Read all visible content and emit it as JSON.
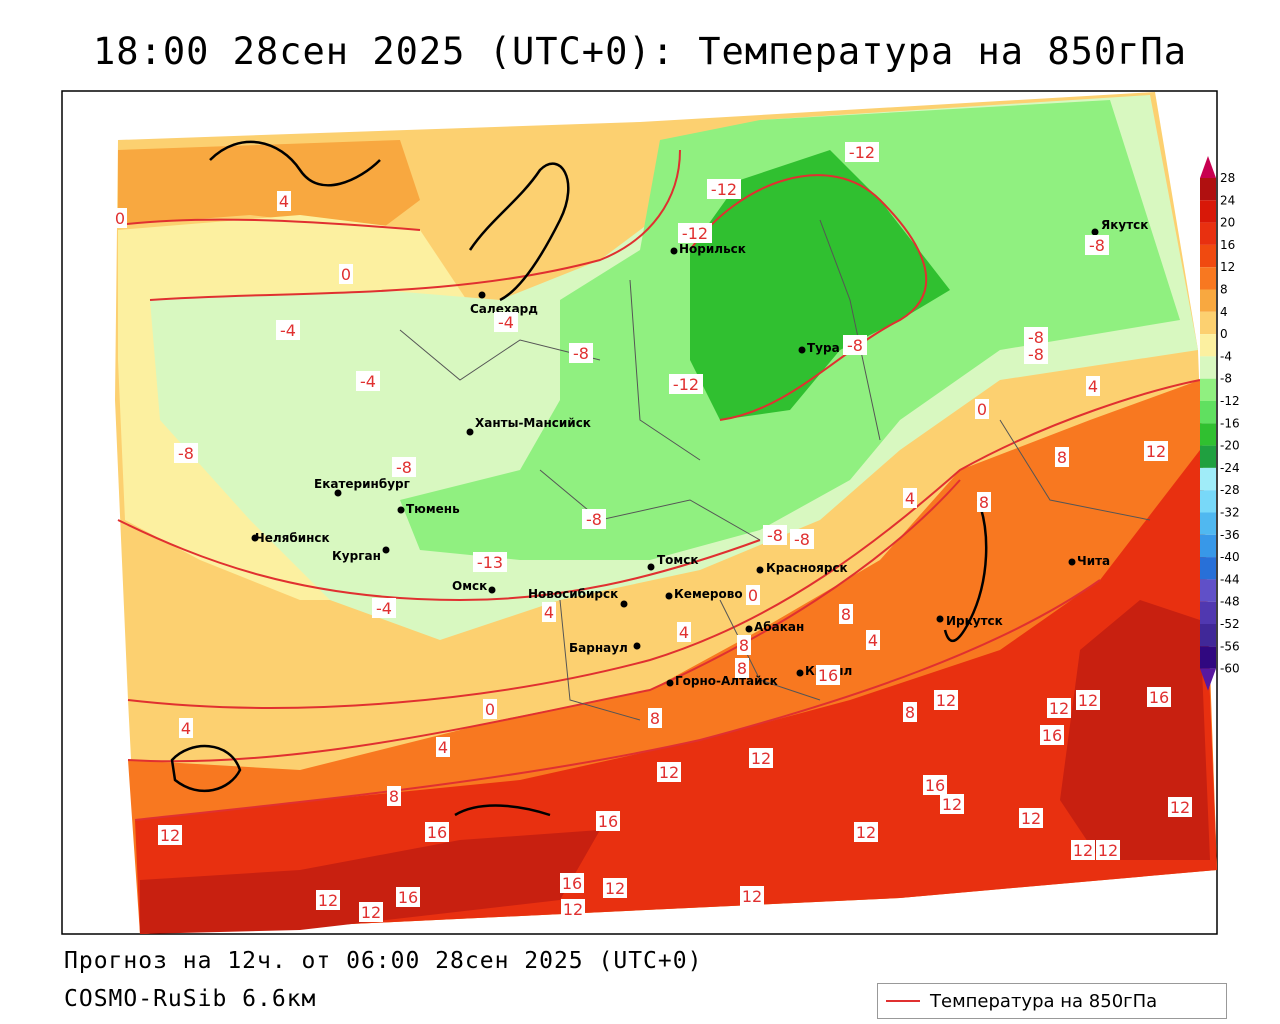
{
  "header": {
    "title": "18:00 28сен 2025 (UTC+0): Температура на 850гПа"
  },
  "footer": {
    "forecast": "Прогноз на 12ч. от 06:00 28сен 2025 (UTC+0)",
    "model": "COSMO-RuSib 6.6км"
  },
  "legend": {
    "label": "Температура на 850гПа",
    "line_color": "#e03030"
  },
  "scale": {
    "labels": [
      "28",
      "24",
      "20",
      "16",
      "12",
      "8",
      "4",
      "0",
      "-4",
      "-8",
      "-12",
      "-16",
      "-20",
      "-24",
      "-28",
      "-32",
      "-36",
      "-40",
      "-44",
      "-48",
      "-52",
      "-56",
      "-60"
    ],
    "colors": [
      "#c80050",
      "#b01010",
      "#d81808",
      "#e83010",
      "#f04a10",
      "#f87820",
      "#f8a840",
      "#fcd070",
      "#fcf0a0",
      "#d8f8c0",
      "#90f080",
      "#60e060",
      "#30c030",
      "#20a040",
      "#a0ecf8",
      "#78d8f8",
      "#50b8f0",
      "#3898e8",
      "#2870d8",
      "#6050c8",
      "#5038b0",
      "#402898",
      "#300880",
      "#5818a0"
    ]
  },
  "cities": [
    {
      "name": "Якутск"
    },
    {
      "name": "Норильск"
    },
    {
      "name": "Салехард"
    },
    {
      "name": "Тура"
    },
    {
      "name": "Ханты-Мансийск"
    },
    {
      "name": "Екатеринбург"
    },
    {
      "name": "Тюмень"
    },
    {
      "name": "Челябинск"
    },
    {
      "name": "Курган"
    },
    {
      "name": "Омск"
    },
    {
      "name": "Томск"
    },
    {
      "name": "Новосибирск"
    },
    {
      "name": "Кемерово"
    },
    {
      "name": "Красноярск"
    },
    {
      "name": "Барнаул"
    },
    {
      "name": "Абакан"
    },
    {
      "name": "Горно-Алтайск"
    },
    {
      "name": "Кызыл"
    },
    {
      "name": "Иркутск"
    },
    {
      "name": "Чита"
    }
  ],
  "isotherm_labels": [
    "4",
    "0",
    "0",
    "-4",
    "-4",
    "-4",
    "-12",
    "-12",
    "-12",
    "-8",
    "-8",
    "-8",
    "-8",
    "-12",
    "-8",
    "-8",
    "-8",
    "-8",
    "-8",
    "-13",
    "-8",
    "-4",
    "4",
    "0",
    "8",
    "12",
    "4",
    "8",
    "4",
    "0",
    "4",
    "8",
    "8",
    "4",
    "8",
    "8",
    "12",
    "12",
    "16",
    "12",
    "16",
    "4",
    "0",
    "4",
    "8",
    "8",
    "12",
    "12",
    "16",
    "12",
    "12",
    "12",
    "12",
    "16",
    "12",
    "12",
    "12",
    "16",
    "12",
    "16",
    "12",
    "12",
    "12",
    "16",
    "16",
    "12"
  ]
}
